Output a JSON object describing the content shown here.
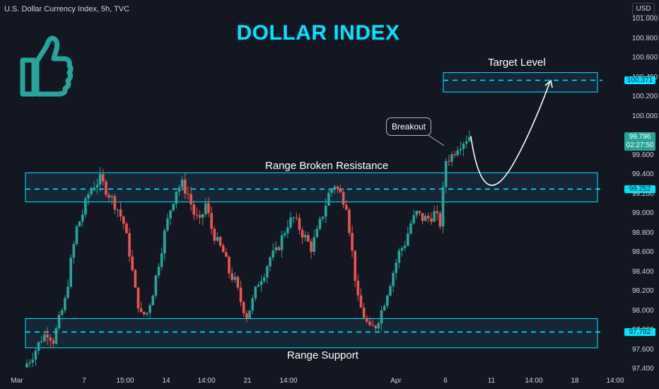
{
  "header": {
    "symbol": "U.S. Dollar Currency Index, 5h, TVC",
    "currency": "USD",
    "title": "DOLLAR INDEX",
    "icon": "thumbs-up-icon"
  },
  "annotations": {
    "target": "Target Level",
    "resistance": "Range Broken Resistance",
    "support": "Range Support",
    "breakout": "Breakout"
  },
  "price_tags": {
    "target": "100.371",
    "resistance": "99.252",
    "support": "97.782",
    "last_price": "99.796",
    "countdown": "02:27:50"
  },
  "colors": {
    "up": "#26a69a",
    "down": "#ef5350",
    "accent": "#00e5ff",
    "zone_fill": "#17293a"
  },
  "chart_data": {
    "type": "candlestick",
    "title": "DOLLAR INDEX",
    "y_axis_ticks": [
      "101.000",
      "100.800",
      "100.600",
      "100.400",
      "100.200",
      "100.000",
      "99.800",
      "99.600",
      "99.400",
      "99.200",
      "99.000",
      "98.800",
      "98.600",
      "98.400",
      "98.200",
      "98.000",
      "97.800",
      "97.600",
      "97.400"
    ],
    "x_axis_ticks": [
      "Mar",
      "7",
      "15:00",
      "14",
      "14:00",
      "21",
      "14:00",
      "Apr",
      "6",
      "11",
      "14:00",
      "18",
      "14:00"
    ],
    "ylim": [
      97.4,
      101.0
    ],
    "levels": [
      {
        "name": "Target Level",
        "value": 100.371,
        "zone": [
          100.25,
          100.45
        ]
      },
      {
        "name": "Range Broken Resistance",
        "value": 99.252,
        "zone": [
          99.12,
          99.42
        ]
      },
      {
        "name": "Range Support",
        "value": 97.782,
        "zone": [
          97.62,
          97.92
        ]
      }
    ],
    "last_price": 99.796,
    "close_path": [
      97.42,
      97.5,
      97.6,
      97.72,
      97.78,
      97.7,
      97.9,
      98.1,
      98.5,
      98.85,
      99.0,
      99.2,
      99.3,
      99.35,
      99.25,
      99.15,
      99.05,
      98.9,
      98.6,
      98.2,
      97.95,
      97.98,
      98.2,
      98.5,
      98.8,
      99.05,
      99.25,
      99.3,
      99.2,
      99.0,
      98.9,
      99.1,
      98.85,
      98.7,
      98.6,
      98.4,
      98.3,
      98.1,
      97.95,
      98.1,
      98.3,
      98.4,
      98.55,
      98.6,
      98.75,
      98.9,
      98.95,
      98.85,
      98.75,
      98.65,
      98.8,
      99.0,
      99.2,
      99.3,
      99.2,
      99.1,
      98.6,
      98.1,
      97.95,
      97.8,
      97.85,
      98.0,
      98.2,
      98.4,
      98.6,
      98.7,
      98.9,
      99.0,
      98.95,
      98.95,
      99.0,
      98.9,
      99.55,
      99.6,
      99.7,
      99.75,
      99.8
    ]
  }
}
